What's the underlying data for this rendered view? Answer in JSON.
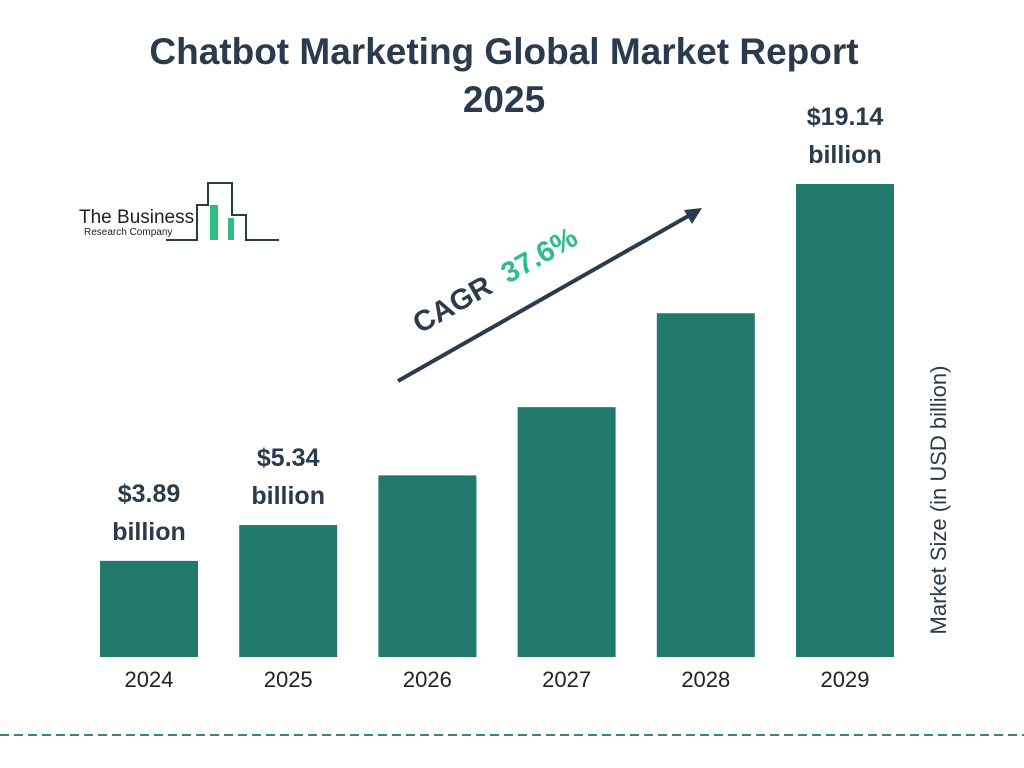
{
  "chart_data": {
    "type": "bar",
    "title": "Chatbot Marketing Global Market Report 2025",
    "categories": [
      "2024",
      "2025",
      "2026",
      "2027",
      "2028",
      "2029"
    ],
    "values": [
      3.89,
      5.34,
      7.35,
      10.11,
      13.91,
      19.14
    ],
    "value_labels": [
      "$3.89 billion",
      "$5.34 billion",
      null,
      null,
      null,
      "$19.14 billion"
    ],
    "color": "#217a6b",
    "y_axis_label": "Market Size (in USD billion)",
    "annotation": {
      "label": "CAGR",
      "value": "37.6%"
    }
  },
  "logo": {
    "line1": "The Business",
    "line2": "Research Company"
  }
}
